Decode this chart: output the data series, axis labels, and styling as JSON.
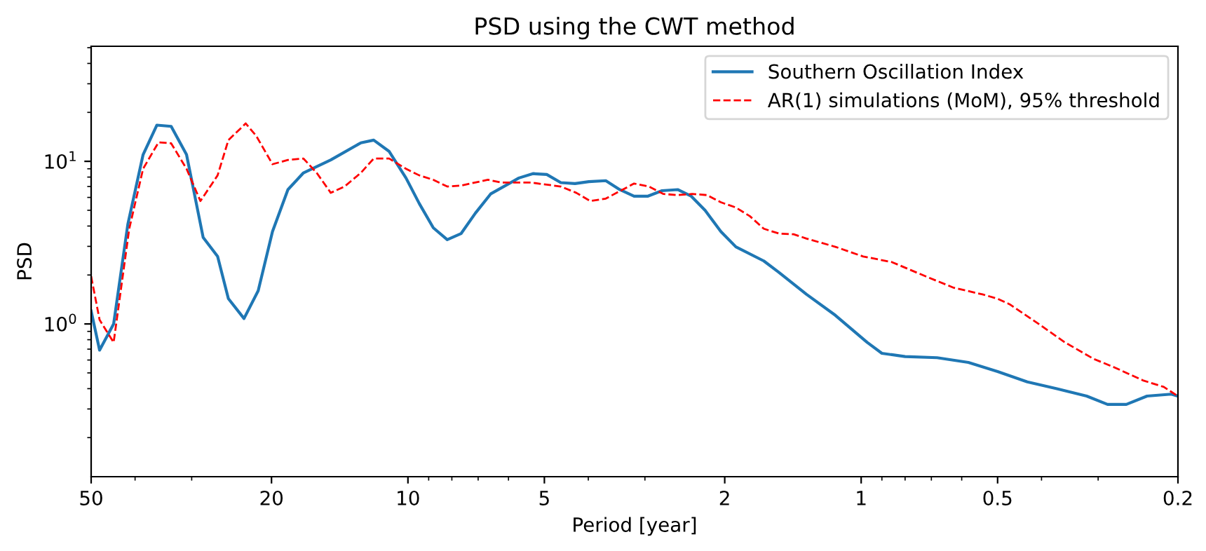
{
  "chart_data": {
    "type": "line",
    "title": "PSD using the CWT method",
    "xlabel": "Period [year]",
    "ylabel": "PSD",
    "log": "xy",
    "xlim": [
      50,
      0.2
    ],
    "xticks": [
      50,
      20,
      10,
      5,
      2,
      1,
      0.5,
      0.2
    ],
    "ylim": [
      0.115,
      51
    ],
    "yticks": [
      {
        "value": 1,
        "label": "10$^{0}$"
      },
      {
        "value": 10,
        "label": "10$^{1}$"
      }
    ],
    "legend": "top right",
    "grid": false,
    "series": [
      {
        "name": "Southern Oscillation Index",
        "color": "#1f77b4",
        "line_style": "solid",
        "x": [
          50,
          47.9,
          44.6,
          41.5,
          38.4,
          35.8,
          33.3,
          30.8,
          28.3,
          26.3,
          24.9,
          23.0,
          21.4,
          19.9,
          18.4,
          17.0,
          14.8,
          12.7,
          11.9,
          11.0,
          10.1,
          9.44,
          8.79,
          8.19,
          7.63,
          7.1,
          6.57,
          5.69,
          5.3,
          4.94,
          4.6,
          4.28,
          3.99,
          3.66,
          3.41,
          3.17,
          2.96,
          2.75,
          2.54,
          2.37,
          2.21,
          2.04,
          1.89,
          1.64,
          1.52,
          1.32,
          1.14,
          0.97,
          0.9,
          0.8,
          0.68,
          0.58,
          0.5,
          0.43,
          0.37,
          0.318,
          0.286,
          0.26,
          0.234,
          0.207,
          0.2
        ],
        "values": [
          1.2,
          0.69,
          1.0,
          4.1,
          11,
          16.7,
          16.4,
          11,
          3.4,
          2.6,
          1.43,
          1.08,
          1.6,
          3.7,
          6.7,
          8.5,
          10.2,
          13,
          13.5,
          11.5,
          7.9,
          5.5,
          3.9,
          3.3,
          3.6,
          4.8,
          6.3,
          7.9,
          8.4,
          8.3,
          7.4,
          7.3,
          7.5,
          7.6,
          6.7,
          6.1,
          6.1,
          6.6,
          6.7,
          6.1,
          5.0,
          3.7,
          2.98,
          2.44,
          2.08,
          1.52,
          1.13,
          0.77,
          0.66,
          0.63,
          0.62,
          0.58,
          0.51,
          0.44,
          0.4,
          0.36,
          0.32,
          0.32,
          0.36,
          0.37,
          0.36
        ]
      },
      {
        "name": "AR(1) simulations (MoM), 95% threshold",
        "color": "#ff0000",
        "line_style": "dashed",
        "x": [
          50,
          47.9,
          44.6,
          41.2,
          38.4,
          35.5,
          33.3,
          30.8,
          28.7,
          26.3,
          24.9,
          22.8,
          21.6,
          19.9,
          18.4,
          17.0,
          15.9,
          14.8,
          13.8,
          12.7,
          11.9,
          11.0,
          10.1,
          9.44,
          8.79,
          8.19,
          7.63,
          6.66,
          6.2,
          5.34,
          4.6,
          4.25,
          3.96,
          3.66,
          3.17,
          2.94,
          2.73,
          2.54,
          2.36,
          2.19,
          2.04,
          1.89,
          1.76,
          1.64,
          1.52,
          1.41,
          1.32,
          1.14,
          0.99,
          0.855,
          0.72,
          0.625,
          0.54,
          0.5,
          0.47,
          0.41,
          0.355,
          0.307,
          0.276,
          0.239,
          0.215,
          0.2
        ],
        "values": [
          1.96,
          1.06,
          0.77,
          3.85,
          9.0,
          13.1,
          12.9,
          9.0,
          5.7,
          8.2,
          13.5,
          17.1,
          14.3,
          9.6,
          10.2,
          10.4,
          8.5,
          6.4,
          7.0,
          8.5,
          10.4,
          10.4,
          9.0,
          8.2,
          7.7,
          7.0,
          7.1,
          7.7,
          7.4,
          7.4,
          7.0,
          6.4,
          5.7,
          5.9,
          7.3,
          7.0,
          6.3,
          6.2,
          6.3,
          6.2,
          5.6,
          5.2,
          4.6,
          3.85,
          3.6,
          3.56,
          3.35,
          2.98,
          2.6,
          2.4,
          1.96,
          1.67,
          1.52,
          1.43,
          1.32,
          1.02,
          0.77,
          0.61,
          0.54,
          0.45,
          0.41,
          0.36
        ]
      }
    ]
  }
}
